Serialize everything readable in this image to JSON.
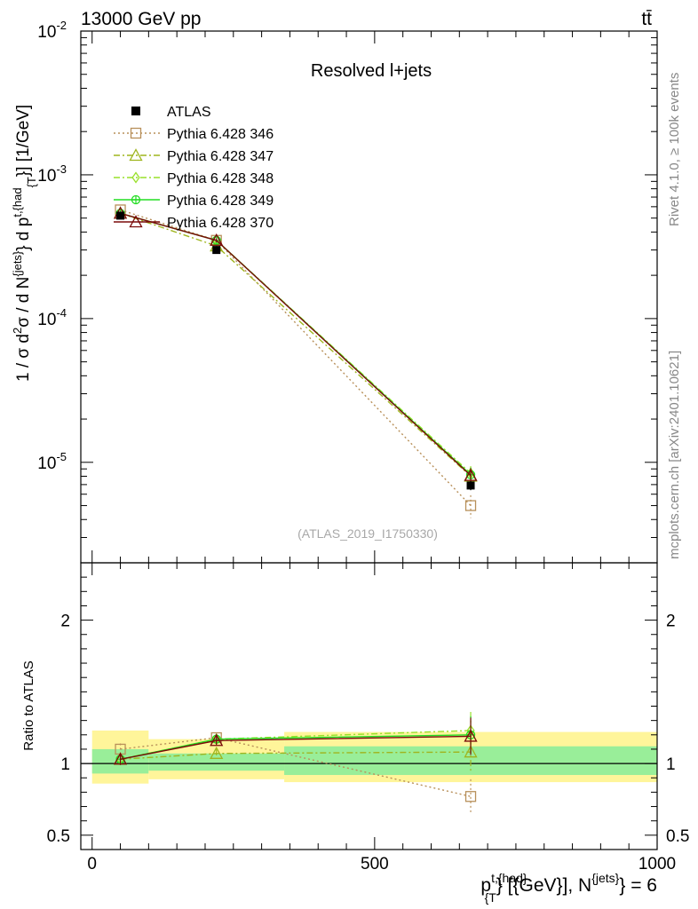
{
  "header": {
    "left": "13000 GeV pp",
    "right": "tt̄"
  },
  "side_text": {
    "rivet": "Rivet 4.1.0, ≥ 100k events",
    "mcplots": "mcplots.cern.ch [arXiv:2401.10621]"
  },
  "chart_data": [
    {
      "type": "line",
      "panel": "main",
      "title": "Resolved l+jets",
      "analysis_label": "(ATLAS_2019_I1750330)",
      "ylabel": "1 / σ d²σ / d N^{jets} d p^{t,{had}}_{T} [1/GeV]",
      "ylabel_parts": {
        "a": "1 / σ d",
        "a_sup": "2",
        "b": "σ / d N",
        "b_sup": "{jets}",
        "c": "} d p",
        "c_sup": "t,{had",
        "c_sub": "{T",
        "d": "}] [1/GeV]"
      },
      "yscale": "log",
      "ylim": [
        2e-06,
        0.01
      ],
      "xlim": [
        -20,
        1000
      ],
      "yticks": [
        {
          "v": 1e-05,
          "base": "10",
          "exp": "-5"
        },
        {
          "v": 0.0001,
          "base": "10",
          "exp": "-4"
        },
        {
          "v": 0.001,
          "base": "10",
          "exp": "-3"
        },
        {
          "v": 0.01,
          "base": "10",
          "exp": "-2"
        }
      ],
      "data": {
        "name": "ATLAS",
        "x": [
          50,
          220,
          670
        ],
        "y": [
          0.00052,
          0.0003,
          6.9e-06
        ],
        "yerr": [
          1.5e-05,
          8e-06,
          5e-07
        ]
      },
      "series": [
        {
          "name": "Pythia 6.428 346",
          "color": "#b8905a",
          "dash": "2,3",
          "marker": "square",
          "x": [
            50,
            220,
            670
          ],
          "y": [
            0.00057,
            0.00035,
            5e-06
          ],
          "yerr": [
            1.5e-05,
            1e-05,
            9e-07
          ]
        },
        {
          "name": "Pythia 6.428 347",
          "color": "#9fb51f",
          "dash": "7,3,2,3",
          "marker": "triangle",
          "x": [
            50,
            220,
            670
          ],
          "y": [
            0.00054,
            0.00032,
            8e-06
          ],
          "yerr": [
            1.5e-05,
            1e-05,
            1e-06
          ]
        },
        {
          "name": "Pythia 6.428 348",
          "color": "#99e02a",
          "dash": "7,3,2,3",
          "marker": "diamond",
          "x": [
            50,
            220,
            670
          ],
          "y": [
            0.00054,
            0.00035,
            8.4e-06
          ],
          "yerr": [
            1.5e-05,
            1e-05,
            1e-06
          ]
        },
        {
          "name": "Pythia 6.428 349",
          "color": "#22dd22",
          "dash": "",
          "marker": "circleplus",
          "x": [
            50,
            220,
            670
          ],
          "y": [
            0.00054,
            0.00035,
            8.2e-06
          ],
          "yerr": [
            1.5e-05,
            1e-05,
            1e-06
          ]
        },
        {
          "name": "Pythia 6.428 370",
          "color": "#7a0a0a",
          "dash": "",
          "marker": "triangle",
          "x": [
            50,
            220,
            670
          ],
          "y": [
            0.00054,
            0.00035,
            8.1e-06
          ],
          "yerr": [
            1.5e-05,
            1e-05,
            1e-06
          ]
        }
      ]
    },
    {
      "type": "line",
      "panel": "ratio",
      "ylabel": "Ratio to ATLAS",
      "ylim": [
        0.4,
        2.4
      ],
      "xlim": [
        -20,
        1000
      ],
      "yticks": [
        {
          "v": 0.5,
          "label": "0.5"
        },
        {
          "v": 1,
          "label": "1"
        },
        {
          "v": 2,
          "label": "2"
        }
      ],
      "xticks": [
        {
          "v": 0,
          "label": "0"
        },
        {
          "v": 500,
          "label": "500"
        },
        {
          "v": 1000,
          "label": "1000"
        }
      ],
      "xlabel": "p^{t,{had}}_{T} [{GeV}], N^{jets} = 6",
      "xlabel_parts": {
        "a": "p",
        "a_sup": "t,{had}",
        "a_sub": "{T",
        "b": "} [{GeV}], N",
        "b_sup": "{jets}",
        "c": "} = 6"
      },
      "bands": [
        {
          "x0": 0,
          "x1": 100,
          "yellow": [
            0.86,
            1.23
          ],
          "green": [
            0.93,
            1.1
          ]
        },
        {
          "x0": 100,
          "x1": 340,
          "yellow": [
            0.89,
            1.17
          ],
          "green": [
            0.95,
            1.07
          ]
        },
        {
          "x0": 340,
          "x1": 1000,
          "yellow": [
            0.87,
            1.22
          ],
          "green": [
            0.92,
            1.12
          ]
        }
      ],
      "series": [
        {
          "name": "Pythia 6.428 346",
          "color": "#b8905a",
          "dash": "2,3",
          "marker": "square",
          "x": [
            50,
            220,
            670
          ],
          "y": [
            1.1,
            1.18,
            0.77
          ],
          "yerr": [
            0.04,
            0.03,
            0.12
          ]
        },
        {
          "name": "Pythia 6.428 347",
          "color": "#9fb51f",
          "dash": "7,3,2,3",
          "marker": "triangle",
          "x": [
            50,
            220,
            670
          ],
          "y": [
            1.03,
            1.07,
            1.08
          ],
          "yerr": [
            0.04,
            0.03,
            0.13
          ]
        },
        {
          "name": "Pythia 6.428 348",
          "color": "#99e02a",
          "dash": "7,3,2,3",
          "marker": "diamond",
          "x": [
            50,
            220,
            670
          ],
          "y": [
            1.03,
            1.17,
            1.23
          ],
          "yerr": [
            0.04,
            0.03,
            0.13
          ]
        },
        {
          "name": "Pythia 6.428 349",
          "color": "#22dd22",
          "dash": "",
          "marker": "circleplus",
          "x": [
            50,
            220,
            670
          ],
          "y": [
            1.03,
            1.17,
            1.2
          ],
          "yerr": [
            0.04,
            0.03,
            0.13
          ]
        },
        {
          "name": "Pythia 6.428 370",
          "color": "#7a0a0a",
          "dash": "",
          "marker": "triangle",
          "x": [
            50,
            220,
            670
          ],
          "y": [
            1.03,
            1.16,
            1.19
          ],
          "yerr": [
            0.04,
            0.03,
            0.13
          ]
        }
      ]
    }
  ]
}
